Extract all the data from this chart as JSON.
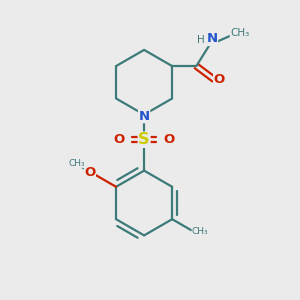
{
  "bg_color": "#ebebeb",
  "bond_color": "#3d7a7a",
  "n_color": "#2255cc",
  "o_color": "#cc2200",
  "s_color": "#cccc00",
  "line_width": 1.6,
  "font_size": 8.5,
  "figsize": [
    3.0,
    3.0
  ],
  "dpi": 100,
  "xlim": [
    0,
    10
  ],
  "ylim": [
    0,
    10
  ]
}
